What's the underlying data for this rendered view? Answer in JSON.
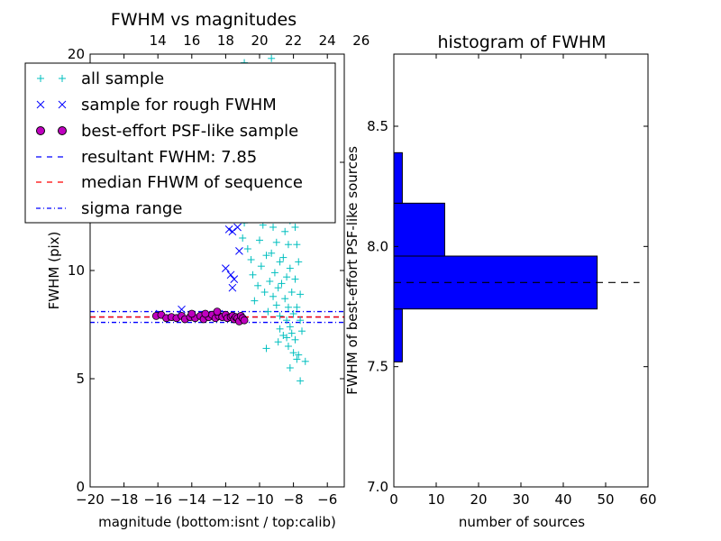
{
  "chart_data": [
    {
      "type": "scatter",
      "title": "FWHM vs magnitudes",
      "xlabel": "magnitude (bottom:isnt / top:calib)",
      "ylabel": "FWHM (pix)",
      "xlim": [
        -20,
        -5
      ],
      "ylim": [
        0,
        20
      ],
      "xticks": [
        -20,
        -18,
        -16,
        -14,
        -12,
        -10,
        -8,
        -6
      ],
      "xtick_labels": [
        "−20",
        "−18",
        "−16",
        "−14",
        "−12",
        "−10",
        "−8",
        "−6"
      ],
      "yticks": [
        0,
        5,
        10,
        15,
        20
      ],
      "ytick_labels": [
        "0",
        "5",
        "10",
        "15",
        "20"
      ],
      "top_axis": {
        "ticks": [
          14,
          16,
          18,
          20,
          22,
          24,
          26
        ],
        "tick_labels": [
          "14",
          "16",
          "18",
          "20",
          "22",
          "24",
          "26"
        ],
        "offset": 30
      },
      "grid": false,
      "legend_position": "top-left",
      "series": [
        {
          "name": "all sample",
          "marker": "plus",
          "color": "#00bfbf",
          "points": [
            [
              -10.9,
              19.6
            ],
            [
              -10.2,
              20.1
            ],
            [
              -9.8,
              19.4
            ],
            [
              -9.3,
              19.8
            ],
            [
              -11.5,
              16.5
            ],
            [
              -11.3,
              15.6
            ],
            [
              -11.1,
              14.8
            ],
            [
              -10.8,
              13.9
            ],
            [
              -10.6,
              13.1
            ],
            [
              -10.9,
              12.2
            ],
            [
              -10.4,
              12.4
            ],
            [
              -11.0,
              11.5
            ],
            [
              -10.7,
              11.0
            ],
            [
              -10.5,
              10.5
            ],
            [
              -10.3,
              16.9
            ],
            [
              -10.0,
              16.2
            ],
            [
              -9.9,
              15.1
            ],
            [
              -10.1,
              14.3
            ],
            [
              -9.7,
              13.6
            ],
            [
              -10.2,
              12.9
            ],
            [
              -9.8,
              12.1
            ],
            [
              -10.0,
              11.4
            ],
            [
              -9.6,
              10.7
            ],
            [
              -9.9,
              10.2
            ],
            [
              -10.4,
              9.8
            ],
            [
              -10.1,
              9.3
            ],
            [
              -9.7,
              9.0
            ],
            [
              -10.3,
              8.6
            ],
            [
              -9.4,
              17.3
            ],
            [
              -9.2,
              16.6
            ],
            [
              -9.5,
              15.7
            ],
            [
              -9.0,
              15.2
            ],
            [
              -9.3,
              14.6
            ],
            [
              -9.1,
              13.8
            ],
            [
              -9.4,
              13.2
            ],
            [
              -8.9,
              12.7
            ],
            [
              -9.2,
              12.0
            ],
            [
              -9.0,
              11.3
            ],
            [
              -9.3,
              10.8
            ],
            [
              -8.8,
              10.4
            ],
            [
              -9.1,
              9.9
            ],
            [
              -9.4,
              9.5
            ],
            [
              -8.9,
              9.2
            ],
            [
              -9.2,
              8.8
            ],
            [
              -9.0,
              8.4
            ],
            [
              -9.5,
              8.1
            ],
            [
              -8.8,
              7.9
            ],
            [
              -8.7,
              16.8
            ],
            [
              -8.5,
              15.9
            ],
            [
              -8.6,
              15.1
            ],
            [
              -8.3,
              14.5
            ],
            [
              -8.7,
              13.9
            ],
            [
              -8.4,
              13.4
            ],
            [
              -8.6,
              12.8
            ],
            [
              -8.2,
              12.3
            ],
            [
              -8.5,
              11.8
            ],
            [
              -8.3,
              11.2
            ],
            [
              -8.6,
              10.6
            ],
            [
              -8.2,
              10.1
            ],
            [
              -8.4,
              9.7
            ],
            [
              -8.7,
              9.4
            ],
            [
              -8.1,
              9.0
            ],
            [
              -8.5,
              8.7
            ],
            [
              -8.3,
              8.3
            ],
            [
              -8.0,
              8.0
            ],
            [
              -8.4,
              7.7
            ],
            [
              -8.2,
              7.4
            ],
            [
              -8.1,
              7.1
            ],
            [
              -7.9,
              6.8
            ],
            [
              -8.3,
              6.5
            ],
            [
              -8.0,
              6.2
            ],
            [
              -7.8,
              5.9
            ],
            [
              -8.8,
              7.3
            ],
            [
              -8.6,
              7.0
            ],
            [
              -8.9,
              6.7
            ],
            [
              -8.4,
              6.9
            ],
            [
              -7.9,
              12.0
            ],
            [
              -7.8,
              11.2
            ],
            [
              -7.7,
              10.4
            ],
            [
              -7.9,
              9.6
            ],
            [
              -7.6,
              8.9
            ],
            [
              -7.8,
              8.3
            ],
            [
              -7.6,
              7.7
            ],
            [
              -7.5,
              7.2
            ],
            [
              -9.6,
              6.4
            ],
            [
              -7.7,
              6.1
            ],
            [
              -7.3,
              5.8
            ],
            [
              -7.6,
              4.9
            ],
            [
              -8.2,
              5.5
            ]
          ]
        },
        {
          "name": "sample for rough FWHM",
          "marker": "x",
          "color": "#0000ff",
          "points": [
            [
              -11.1,
              12.6
            ],
            [
              -11.6,
              11.8
            ],
            [
              -11.3,
              12.0
            ],
            [
              -11.8,
              11.9
            ],
            [
              -11.2,
              10.9
            ],
            [
              -12.0,
              10.1
            ],
            [
              -11.7,
              9.8
            ],
            [
              -11.5,
              9.6
            ],
            [
              -11.6,
              9.2
            ],
            [
              -14.6,
              8.2
            ],
            [
              -12.4,
              8.0
            ],
            [
              -15.9,
              8.0
            ],
            [
              -11.3,
              7.9
            ]
          ]
        },
        {
          "name": "best-effort PSF-like sample",
          "marker": "circle",
          "color": "#bf00bf",
          "points": [
            [
              -16.1,
              7.9
            ],
            [
              -15.8,
              7.95
            ],
            [
              -15.5,
              7.8
            ],
            [
              -15.2,
              7.85
            ],
            [
              -14.9,
              7.8
            ],
            [
              -14.6,
              7.9
            ],
            [
              -14.4,
              7.75
            ],
            [
              -14.1,
              7.85
            ],
            [
              -13.8,
              7.8
            ],
            [
              -13.5,
              7.9
            ],
            [
              -13.3,
              7.75
            ],
            [
              -13.0,
              7.85
            ],
            [
              -12.8,
              7.95
            ],
            [
              -12.6,
              7.8
            ],
            [
              -12.4,
              7.9
            ],
            [
              -12.2,
              7.85
            ],
            [
              -12.0,
              7.95
            ],
            [
              -11.9,
              7.8
            ],
            [
              -11.7,
              7.85
            ],
            [
              -11.6,
              7.9
            ],
            [
              -11.5,
              7.75
            ],
            [
              -11.4,
              7.85
            ],
            [
              -11.3,
              7.8
            ],
            [
              -11.2,
              7.65
            ],
            [
              -11.1,
              7.9
            ],
            [
              -11.0,
              7.8
            ],
            [
              -10.9,
              7.7
            ],
            [
              -12.5,
              8.1
            ],
            [
              -13.2,
              8.0
            ],
            [
              -14.0,
              8.0
            ]
          ]
        },
        {
          "name": "resultant FWHM: 7.85",
          "type": "hline",
          "style": "dashed",
          "color": "#0000ff",
          "y": 7.85
        },
        {
          "name": "median FHWM of sequence",
          "type": "hline",
          "style": "dashed",
          "color": "#ff0000",
          "y": 7.85
        },
        {
          "name": "sigma range",
          "type": "hline",
          "style": "dashdot",
          "color": "#0000ff",
          "y": [
            7.6,
            8.1
          ]
        }
      ]
    },
    {
      "type": "bar",
      "orientation": "horizontal",
      "title": "histogram of FWHM",
      "xlabel": "number of sources",
      "ylabel": "FWHM of best-effort PSF-like sources",
      "xlim": [
        0,
        60
      ],
      "ylim": [
        7.0,
        8.8
      ],
      "xticks": [
        0,
        10,
        20,
        30,
        40,
        50,
        60
      ],
      "xtick_labels": [
        "0",
        "10",
        "20",
        "30",
        "40",
        "50",
        "60"
      ],
      "yticks": [
        7.0,
        7.5,
        8.0,
        8.5
      ],
      "ytick_labels": [
        "7.0",
        "7.5",
        "8.0",
        "8.5"
      ],
      "grid": false,
      "color": "#0000ff",
      "bins": [
        {
          "y0": 7.52,
          "y1": 7.74,
          "count": 2
        },
        {
          "y0": 7.74,
          "y1": 7.96,
          "count": 48
        },
        {
          "y0": 7.96,
          "y1": 8.18,
          "count": 12
        },
        {
          "y0": 8.18,
          "y1": 8.39,
          "count": 2
        }
      ],
      "reference_line": {
        "y": 7.85,
        "style": "dashed",
        "color": "#000000",
        "x_range": [
          0,
          58
        ]
      }
    }
  ]
}
